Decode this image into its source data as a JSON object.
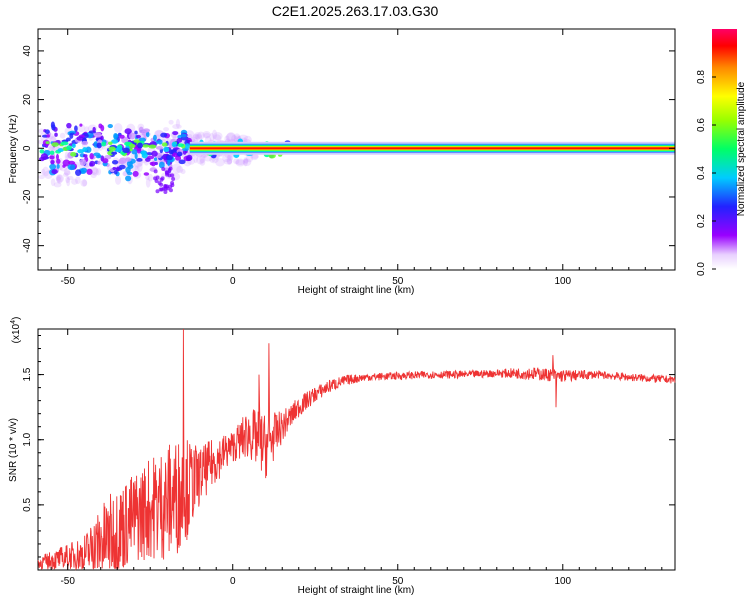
{
  "title": "C2E1.2025.263.17.03.G30",
  "chart_data": [
    {
      "type": "heatmap",
      "xlabel": "Height of straight line (km)",
      "ylabel": "Frequency (Hz)",
      "xlim": [
        -59,
        134
      ],
      "ylim": [
        -50,
        49
      ],
      "xticks": [
        -50,
        0,
        50,
        100
      ],
      "yticks": [
        -40,
        -20,
        0,
        20,
        40
      ],
      "colorbar": {
        "label": "Normalized spectral amplitude",
        "range": [
          0,
          1
        ],
        "ticks": [
          "0.0",
          "0.2",
          "0.4",
          "0.6",
          "0.8"
        ],
        "tick_values": [
          0,
          0.2,
          0.4,
          0.6,
          0.8
        ]
      },
      "main_line": {
        "x_start": -13,
        "x_end": 134,
        "frequency": 0
      },
      "scatter_region": {
        "x_start": -58,
        "x_end": -13,
        "freq_min": -28,
        "freq_max": 13
      }
    },
    {
      "type": "line",
      "xlabel": "Height of straight line (km)",
      "ylabel": "SNR (10 * v/v)",
      "scale_label": "(x10",
      "scale_exponent": "4",
      "xlim": [
        -59,
        134
      ],
      "ylim": [
        0,
        1.85
      ],
      "xticks": [
        -50,
        0,
        50,
        100
      ],
      "yticks": [
        0.5,
        1.0,
        1.5
      ],
      "ytick_labels": [
        "0.5",
        "1.0",
        "1.5"
      ],
      "color": "#ee3333",
      "series": [
        {
          "name": "SNR",
          "x": [
            -59,
            -50,
            -45,
            -40,
            -35,
            -30,
            -25,
            -20,
            -15,
            -10,
            -5,
            0,
            5,
            10,
            15,
            20,
            25,
            30,
            35,
            40,
            50,
            60,
            70,
            80,
            90,
            100,
            110,
            120,
            134
          ],
          "y": [
            0.05,
            0.1,
            0.12,
            0.2,
            0.3,
            0.4,
            0.48,
            0.52,
            0.6,
            0.72,
            0.85,
            0.95,
            1.05,
            0.95,
            1.1,
            1.25,
            1.35,
            1.42,
            1.46,
            1.48,
            1.49,
            1.5,
            1.5,
            1.51,
            1.51,
            1.49,
            1.5,
            1.48,
            1.46
          ],
          "noise": [
            0.05,
            0.1,
            0.15,
            0.3,
            0.35,
            0.35,
            0.4,
            0.45,
            0.45,
            0.22,
            0.18,
            0.12,
            0.2,
            0.25,
            0.12,
            0.08,
            0.06,
            0.05,
            0.04,
            0.03,
            0.03,
            0.03,
            0.03,
            0.03,
            0.05,
            0.05,
            0.03,
            0.03,
            0.03
          ]
        }
      ],
      "peaks": [
        {
          "x": -15,
          "y": 1.85
        },
        {
          "x": 11,
          "y": 1.74
        },
        {
          "x": 8,
          "y": 1.5
        },
        {
          "x": 97,
          "y": 1.65
        },
        {
          "x": 98,
          "y": 1.25
        }
      ]
    }
  ]
}
